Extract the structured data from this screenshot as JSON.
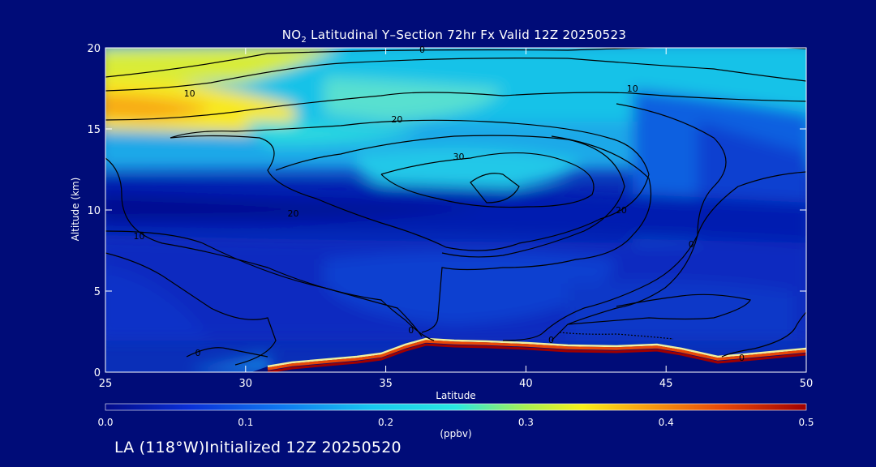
{
  "title": {
    "prefix": "NO",
    "subscript": "2",
    "rest": " Latitudinal Y–Section 72hr  Fx Valid 12Z 20250523"
  },
  "footer": "LA (118°W)Initialized 12Z 20250520",
  "colors": {
    "background": "#000c78",
    "frame": "#ffffff",
    "contour": "#000000"
  },
  "chart_data": {
    "type": "heatmap",
    "xlabel": "Latitude",
    "ylabel": "Altitude (km)",
    "xlim": [
      25,
      50
    ],
    "ylim": [
      0,
      20
    ],
    "x_ticks": [
      25,
      30,
      35,
      40,
      45,
      50
    ],
    "y_ticks": [
      0,
      5,
      10,
      15,
      20
    ],
    "colorbar": {
      "min": 0.0,
      "max": 0.5,
      "ticks": [
        "0.0",
        "0.1",
        "0.2",
        "0.3",
        "0.4",
        "0.5"
      ],
      "label": "(ppbv)",
      "colors": [
        "#020b8a",
        "#0a30d8",
        "#0f78f0",
        "#18c8f0",
        "#28e8e0",
        "#a8f050",
        "#f8f018",
        "#f8a810",
        "#e84808",
        "#a00000"
      ]
    },
    "field_description": "NO2 mixing ratio: elevated near 15-18 km at southern latitudes, minimum band near 8-12 km, high values at the terrain surface",
    "terrain": [
      [
        25,
        0
      ],
      [
        31,
        0.3
      ],
      [
        33,
        0.8
      ],
      [
        35,
        1.4
      ],
      [
        37,
        2.0
      ],
      [
        40,
        1.6
      ],
      [
        45,
        1.4
      ],
      [
        47,
        0.7
      ],
      [
        50,
        1.2
      ]
    ],
    "contour_labels": [
      {
        "text": "0",
        "lat": 36.3,
        "alt": 19.9
      },
      {
        "text": "10",
        "lat": 28.0,
        "alt": 17.2
      },
      {
        "text": "10",
        "lat": 43.8,
        "alt": 17.5
      },
      {
        "text": "20",
        "lat": 35.4,
        "alt": 15.6
      },
      {
        "text": "30",
        "lat": 37.6,
        "alt": 13.3
      },
      {
        "text": "20",
        "lat": 31.7,
        "alt": 9.8
      },
      {
        "text": "20",
        "lat": 43.4,
        "alt": 10.0
      },
      {
        "text": "10",
        "lat": 26.2,
        "alt": 8.4
      },
      {
        "text": "0",
        "lat": 45.9,
        "alt": 7.9
      },
      {
        "text": "0",
        "lat": 28.3,
        "alt": 1.2
      },
      {
        "text": "0",
        "lat": 35.9,
        "alt": 2.6
      },
      {
        "text": "0",
        "lat": 40.9,
        "alt": 2.0
      },
      {
        "text": "0",
        "lat": 47.7,
        "alt": 0.9
      }
    ]
  }
}
